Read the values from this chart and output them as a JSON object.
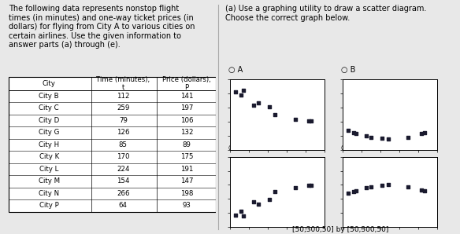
{
  "title_text": "The following data represents nonstop flight\ntimes (in minutes) and one-way ticket prices (in\ndollars) for flying from City A to various cities on\ncertain airlines. Use the given information to\nanswer parts (a) through (e).",
  "right_title": "(a) Use a graphing utility to draw a scatter diagram.\nChoose the correct graph below.",
  "cities": [
    "City B",
    "City C",
    "City D",
    "City G",
    "City H",
    "City K",
    "City L",
    "City M",
    "City N",
    "City P"
  ],
  "times": [
    112,
    259,
    79,
    126,
    85,
    170,
    224,
    154,
    266,
    64
  ],
  "prices": [
    141,
    197,
    106,
    132,
    89,
    175,
    191,
    147,
    198,
    93
  ],
  "xlim": [
    50,
    300
  ],
  "ylim": [
    50,
    300
  ],
  "axis_note": "[50,300,50] by [50,300,50]",
  "bg_color": "#e8e8e8",
  "dot_color": "#1a1a2e",
  "font_size_text": 7.0,
  "font_size_table": 6.2
}
